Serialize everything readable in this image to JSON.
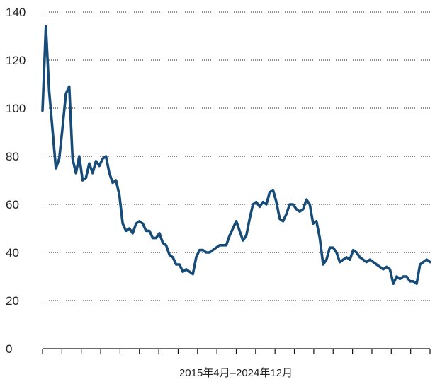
{
  "chart_data": {
    "type": "line",
    "title": "",
    "xlabel": "2015年4月–2024年12月",
    "ylabel": "",
    "ylim": [
      0,
      140
    ],
    "yticks": [
      0,
      20,
      40,
      60,
      80,
      100,
      120,
      140
    ],
    "x_start": "2015-04",
    "x_end": "2024-12",
    "grid": true,
    "legend": "none",
    "colors": {
      "line": "#174b78",
      "axis": "#111111",
      "grid": "#222222"
    },
    "series": [
      {
        "values": [
          99,
          134,
          107,
          91,
          75,
          79,
          92,
          106,
          109,
          79,
          73,
          80,
          70,
          71,
          77,
          73,
          78,
          76,
          79,
          80,
          73,
          69,
          70,
          64,
          52,
          49,
          50,
          48,
          52,
          53,
          52,
          49,
          49,
          46,
          46,
          48,
          44,
          43,
          39,
          38,
          35,
          35,
          32,
          33,
          32,
          31,
          38,
          41,
          41,
          40,
          40,
          41,
          42,
          43,
          43,
          43,
          47,
          50,
          53,
          49,
          45,
          47,
          54,
          60,
          61,
          59,
          61,
          60,
          65,
          66,
          61,
          54,
          53,
          56,
          60,
          60,
          58,
          57,
          58,
          62,
          60,
          52,
          53,
          46,
          35,
          37,
          42,
          42,
          40,
          36,
          37,
          38,
          37,
          41,
          40,
          38,
          37,
          36,
          37,
          36,
          35,
          34,
          33,
          34,
          33,
          27,
          30,
          29,
          30,
          30,
          28,
          28,
          27,
          35,
          36,
          37,
          36
        ]
      }
    ]
  }
}
